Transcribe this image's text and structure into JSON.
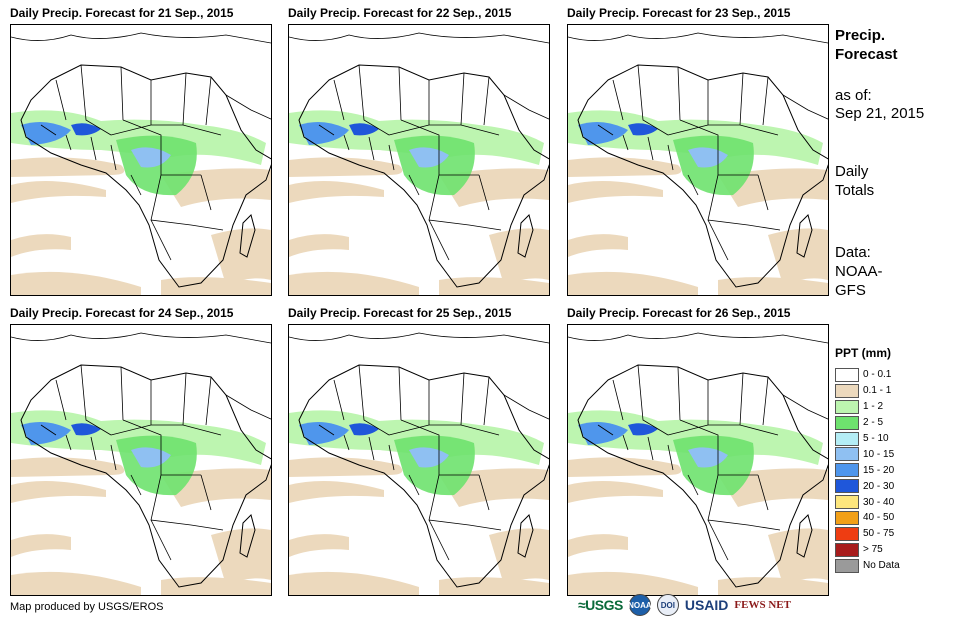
{
  "panels": [
    {
      "title": "Daily Precip. Forecast for 21 Sep., 2015"
    },
    {
      "title": "Daily Precip. Forecast for 22 Sep., 2015"
    },
    {
      "title": "Daily Precip. Forecast for 23 Sep., 2015"
    },
    {
      "title": "Daily Precip. Forecast for 24 Sep., 2015"
    },
    {
      "title": "Daily Precip. Forecast for 25 Sep., 2015"
    },
    {
      "title": "Daily Precip. Forecast for 26 Sep., 2015"
    }
  ],
  "sidebar": {
    "title_line1": "Precip.",
    "title_line2": "Forecast",
    "asof_label": "as of:",
    "asof_date": "Sep 21, 2015",
    "daily_line1": "Daily",
    "daily_line2": "Totals",
    "data_line1": "Data:",
    "data_line2": "NOAA-",
    "data_line3": "GFS"
  },
  "legend": {
    "title": "PPT (mm)",
    "items": [
      {
        "label": "0 - 0.1",
        "color": "#ffffff"
      },
      {
        "label": "0.1 - 1",
        "color": "#ecd9bd"
      },
      {
        "label": "1 - 2",
        "color": "#bdf5b0"
      },
      {
        "label": "2 - 5",
        "color": "#6ee26e"
      },
      {
        "label": "5 - 10",
        "color": "#b4edf5"
      },
      {
        "label": "10 - 15",
        "color": "#8fc0f2"
      },
      {
        "label": "15 - 20",
        "color": "#4f96ec"
      },
      {
        "label": "20 - 30",
        "color": "#1f57da"
      },
      {
        "label": "30 - 40",
        "color": "#fde67d"
      },
      {
        "label": "40 - 50",
        "color": "#f2a018"
      },
      {
        "label": "50 - 75",
        "color": "#ee3d12"
      },
      {
        "label": "> 75",
        "color": "#a81d1d"
      },
      {
        "label": "No Data",
        "color": "#9a9a9a"
      }
    ]
  },
  "footer": {
    "credit": "Map produced by USGS/EROS",
    "logo_usgs": "≈USGS",
    "logo_noaa": "NOAA",
    "logo_seal": "DOI",
    "logo_usaid": "USAID",
    "logo_fews": "FEWS NET"
  }
}
